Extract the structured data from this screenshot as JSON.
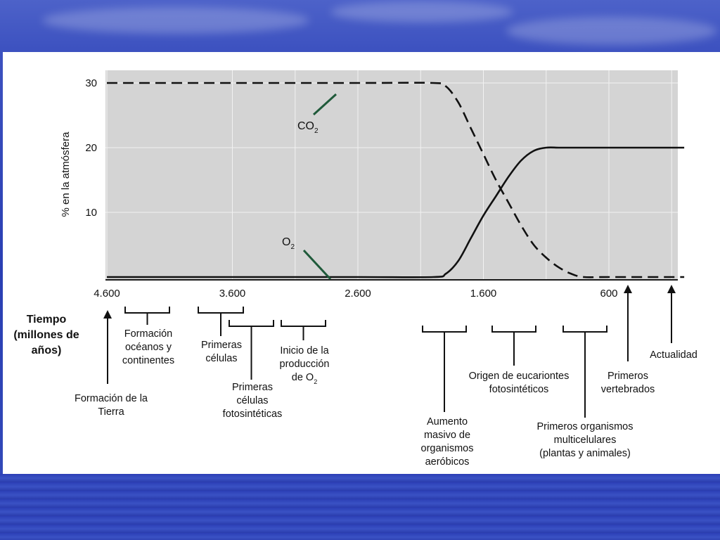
{
  "chart_data": {
    "type": "line",
    "x_reversed": true,
    "xlim": [
      4600,
      0
    ],
    "ylim": [
      0,
      30
    ],
    "ylabel": "% en la atmósfera",
    "y_ticks": [
      "30",
      "20",
      "10"
    ],
    "y_tick_values": [
      30,
      20,
      10
    ],
    "x_ticks": [
      "4.600",
      "3.600",
      "2.600",
      "1.600",
      "600"
    ],
    "x_tick_values": [
      4600,
      3600,
      2600,
      1600,
      600
    ],
    "series": [
      {
        "name": "CO2",
        "style": "dashed",
        "x": [
          4600,
          3600,
          2600,
          2000,
          1900,
          1800,
          1700,
          1600,
          1500,
          1400,
          1300,
          1200,
          1100,
          1000,
          900,
          800,
          600,
          0
        ],
        "y": [
          30,
          30,
          30,
          30,
          29.5,
          27,
          23,
          19,
          15,
          11.5,
          8,
          5,
          3,
          1.5,
          0.5,
          0,
          0,
          0
        ]
      },
      {
        "name": "O2",
        "style": "solid",
        "x": [
          4600,
          3600,
          2600,
          2000,
          1900,
          1800,
          1700,
          1600,
          1500,
          1400,
          1300,
          1200,
          1100,
          1000,
          900,
          600,
          0
        ],
        "y": [
          0,
          0,
          0,
          0,
          0.5,
          2.5,
          6,
          9.5,
          12.5,
          15.5,
          18,
          19.5,
          20,
          20,
          20,
          20,
          20
        ]
      }
    ],
    "series_labels": {
      "co2_main": "CO",
      "co2_sub": "2",
      "o2_main": "O",
      "o2_sub": "2"
    },
    "xlabel_lines": [
      "Tiempo",
      "(millones de",
      "años)"
    ],
    "annotations": [
      {
        "lines": [
          "Formación de la",
          "Tierra"
        ]
      },
      {
        "lines": [
          "Formación",
          "océanos y",
          "continentes"
        ]
      },
      {
        "lines": [
          "Primeras",
          "células"
        ]
      },
      {
        "lines": [
          "Primeras",
          "células",
          "fotosintéticas"
        ]
      },
      {
        "lines": [
          "Inicio de la",
          "producción",
          "de O"
        ],
        "sub": "2"
      },
      {
        "lines": [
          "Aumento",
          "masivo de",
          "organismos",
          "aeróbicos"
        ]
      },
      {
        "lines": [
          "Origen de eucariontes",
          "fotosintéticos"
        ]
      },
      {
        "lines": [
          "Primeros organismos",
          "multicelulares",
          "(plantas y animales)"
        ]
      },
      {
        "lines": [
          "Primeros",
          "vertebrados"
        ]
      },
      {
        "lines": [
          "Actualidad"
        ]
      }
    ]
  },
  "theme": {
    "plot_bg": "#d4d4d4",
    "grid": "#f2f2f2",
    "axis": "#1a1a1a",
    "pointer": "#1f5a3a"
  }
}
